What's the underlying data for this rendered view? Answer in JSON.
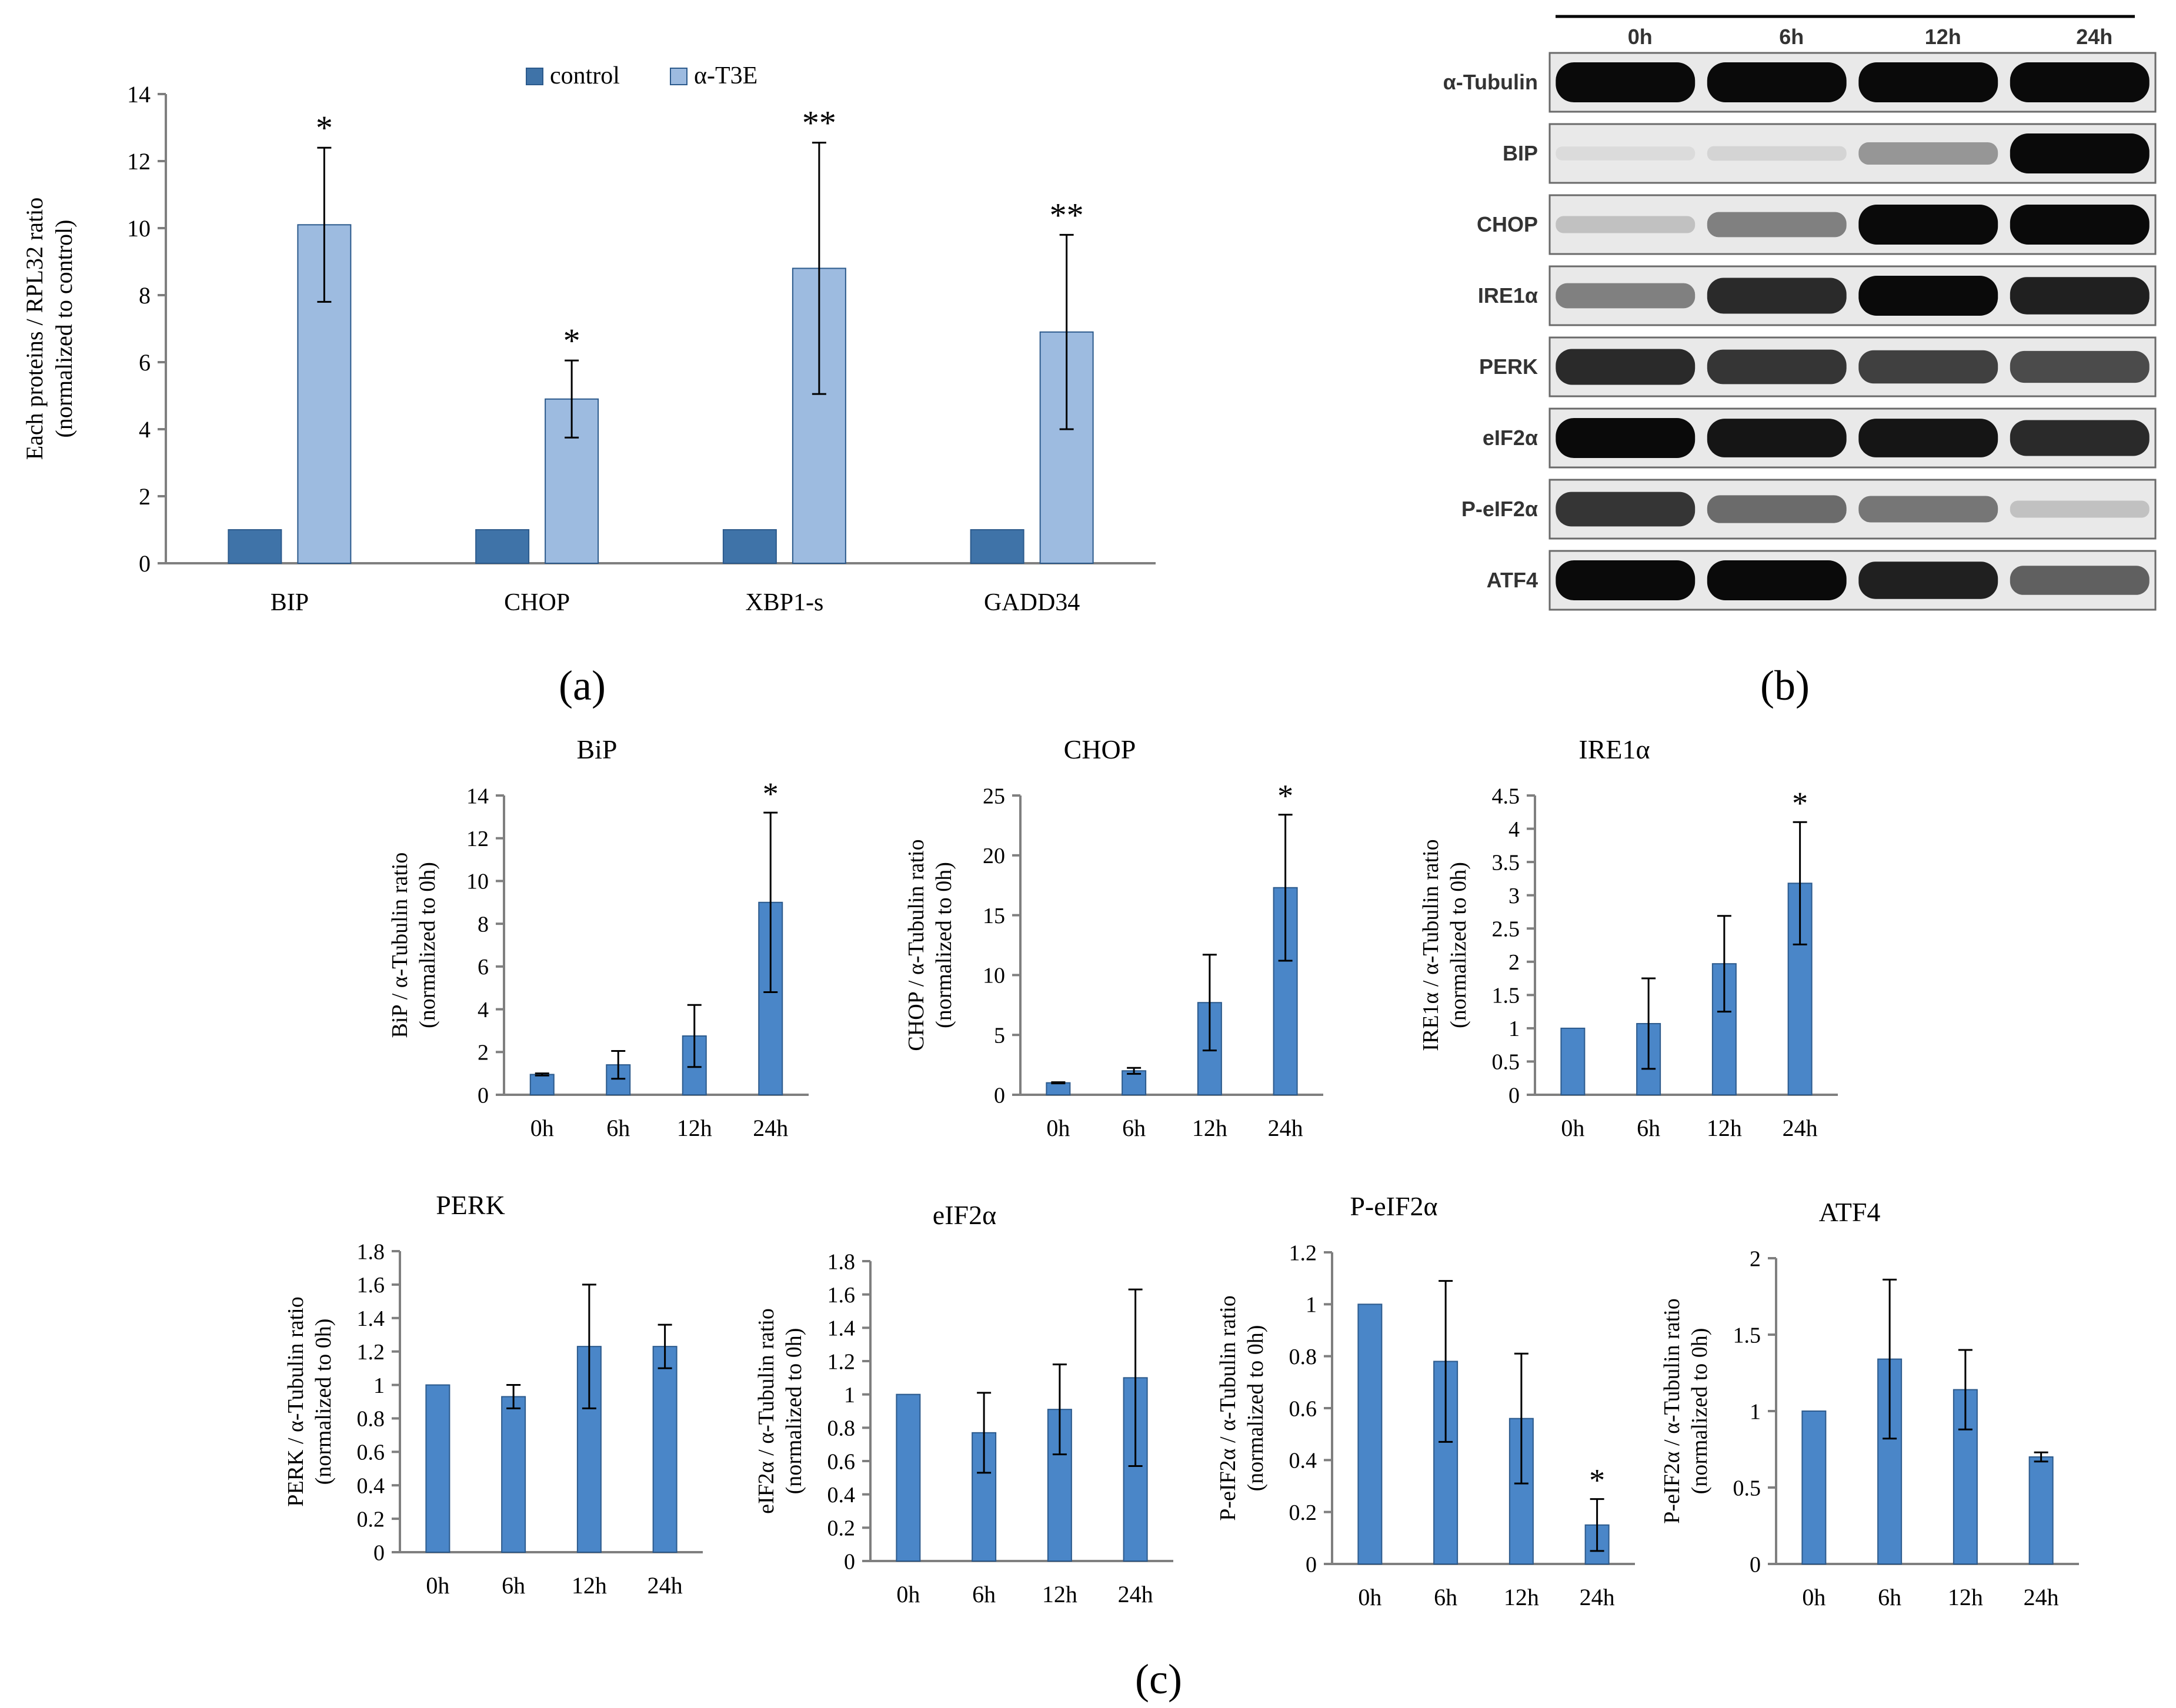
{
  "panel_labels": {
    "a": "(a)",
    "b": "(b)",
    "c": "(c)"
  },
  "colors": {
    "control": "#3f73a8",
    "treated": "#9dbbe0",
    "bar_c": "#4a86c8",
    "axis": "#7f7f7f"
  },
  "chart_data": [
    {
      "id": "a",
      "type": "bar",
      "title": "",
      "ylabel": "Each proteins / RPL32 ratio",
      "ylabel2": "(normalized to control)",
      "xlabel": "",
      "categories": [
        "BIP",
        "CHOP",
        "XBP1-s",
        "GADD34"
      ],
      "series": [
        {
          "name": "control",
          "values": [
            1,
            1,
            1,
            1
          ],
          "errors": [
            0,
            0,
            0,
            0
          ]
        },
        {
          "name": "α-T3E",
          "values": [
            10.1,
            4.9,
            8.8,
            6.9
          ],
          "errors": [
            2.3,
            1.15,
            3.75,
            2.9
          ]
        }
      ],
      "significance": [
        "*",
        "*",
        "**",
        "**"
      ],
      "ylim": [
        0,
        14
      ],
      "yticks": [
        "0",
        "2",
        "4",
        "6",
        "8",
        "10",
        "12",
        "14"
      ],
      "legend": "top"
    },
    {
      "id": "c-bip",
      "type": "bar",
      "title": "BiP",
      "ylabel": "BiP / α-Tubulin ratio",
      "ylabel2": "(normalized to 0h)",
      "categories": [
        "0h",
        "6h",
        "12h",
        "24h"
      ],
      "values": [
        0.95,
        1.4,
        2.75,
        9.0
      ],
      "errors": [
        0.05,
        0.65,
        1.45,
        4.2
      ],
      "significance": [
        "",
        "",
        "",
        "*"
      ],
      "ylim": [
        0,
        14
      ],
      "yticks": [
        "0",
        "2",
        "4",
        "6",
        "8",
        "10",
        "12",
        "14"
      ]
    },
    {
      "id": "c-chop",
      "type": "bar",
      "title": "CHOP",
      "ylabel": "CHOP / α-Tubulin ratio",
      "ylabel2": "(normalized to 0h)",
      "categories": [
        "0h",
        "6h",
        "12h",
        "24h"
      ],
      "values": [
        1.0,
        2.0,
        7.7,
        17.3
      ],
      "errors": [
        0.05,
        0.25,
        4.0,
        6.1
      ],
      "significance": [
        "",
        "",
        "",
        "*"
      ],
      "ylim": [
        0,
        25
      ],
      "yticks": [
        "0",
        "5",
        "10",
        "15",
        "20",
        "25"
      ]
    },
    {
      "id": "c-ire1a",
      "type": "bar",
      "title": "IRE1α",
      "ylabel": "IRE1α / α-Tubulin ratio",
      "ylabel2": "(normalized to 0h)",
      "categories": [
        "0h",
        "6h",
        "12h",
        "24h"
      ],
      "values": [
        1.0,
        1.07,
        1.97,
        3.18
      ],
      "errors": [
        0.0,
        0.68,
        0.72,
        0.92
      ],
      "significance": [
        "",
        "",
        "",
        "*"
      ],
      "ylim": [
        0,
        4.5
      ],
      "yticks": [
        "0",
        "0.5",
        "1",
        "1.5",
        "2",
        "2.5",
        "3",
        "3.5",
        "4",
        "4.5"
      ]
    },
    {
      "id": "c-perk",
      "type": "bar",
      "title": "PERK",
      "ylabel": "PERK / α-Tubulin ratio",
      "ylabel2": "(normalized to 0h)",
      "categories": [
        "0h",
        "6h",
        "12h",
        "24h"
      ],
      "values": [
        1.0,
        0.93,
        1.23,
        1.23
      ],
      "errors": [
        0.0,
        0.07,
        0.37,
        0.13
      ],
      "significance": [
        "",
        "",
        "",
        ""
      ],
      "ylim": [
        0,
        1.8
      ],
      "yticks": [
        "0",
        "0.2",
        "0.4",
        "0.6",
        "0.8",
        "1",
        "1.2",
        "1.4",
        "1.6",
        "1.8"
      ]
    },
    {
      "id": "c-eif2a",
      "type": "bar",
      "title": "eIF2α",
      "ylabel": "eIF2α / α-Tubulin ratio",
      "ylabel2": "(normalized to 0h)",
      "categories": [
        "0h",
        "6h",
        "12h",
        "24h"
      ],
      "values": [
        1.0,
        0.77,
        0.91,
        1.1
      ],
      "errors": [
        0.0,
        0.24,
        0.27,
        0.53
      ],
      "significance": [
        "",
        "",
        "",
        ""
      ],
      "ylim": [
        0,
        1.8
      ],
      "yticks": [
        "0",
        "0.2",
        "0.4",
        "0.6",
        "0.8",
        "1",
        "1.2",
        "1.4",
        "1.6",
        "1.8"
      ]
    },
    {
      "id": "c-peif2a",
      "type": "bar",
      "title": "P-eIF2α",
      "ylabel": "P-eIF2α / α-Tubulin ratio",
      "ylabel2": "(normalized to 0h)",
      "categories": [
        "0h",
        "6h",
        "12h",
        "24h"
      ],
      "values": [
        1.0,
        0.78,
        0.56,
        0.15
      ],
      "errors": [
        0.0,
        0.31,
        0.25,
        0.1
      ],
      "significance": [
        "",
        "",
        "",
        "*"
      ],
      "ylim": [
        0,
        1.2
      ],
      "yticks": [
        "0",
        "0.2",
        "0.4",
        "0.6",
        "0.8",
        "1",
        "1.2"
      ]
    },
    {
      "id": "c-atf4",
      "type": "bar",
      "title": "ATF4",
      "ylabel": "P-eIF2α / α-Tubulin ratio",
      "ylabel2": "(normalized to 0h)",
      "categories": [
        "0h",
        "6h",
        "12h",
        "24h"
      ],
      "values": [
        1.0,
        1.34,
        1.14,
        0.7
      ],
      "errors": [
        0.0,
        0.52,
        0.26,
        0.03
      ],
      "significance": [
        "",
        "",
        "",
        ""
      ],
      "ylim": [
        0,
        2
      ],
      "yticks": [
        "0",
        "0.5",
        "1",
        "1.5",
        "2"
      ]
    }
  ],
  "blot": {
    "timepoints": [
      "0h",
      "6h",
      "12h",
      "24h"
    ],
    "rows": [
      {
        "label": "α-Tubulin",
        "intensity": [
          1.0,
          1.0,
          1.0,
          1.0
        ]
      },
      {
        "label": "BIP",
        "intensity": [
          0.03,
          0.06,
          0.35,
          1.0
        ]
      },
      {
        "label": "CHOP",
        "intensity": [
          0.15,
          0.45,
          1.0,
          1.0
        ]
      },
      {
        "label": "IRE1α",
        "intensity": [
          0.45,
          0.85,
          1.0,
          0.9
        ]
      },
      {
        "label": "PERK",
        "intensity": [
          0.85,
          0.8,
          0.75,
          0.7
        ]
      },
      {
        "label": "eIF2α",
        "intensity": [
          1.0,
          0.95,
          0.95,
          0.85
        ]
      },
      {
        "label": "P-eIF2α",
        "intensity": [
          0.8,
          0.55,
          0.5,
          0.15
        ]
      },
      {
        "label": "ATF4",
        "intensity": [
          1.0,
          1.0,
          0.9,
          0.6
        ]
      }
    ]
  }
}
